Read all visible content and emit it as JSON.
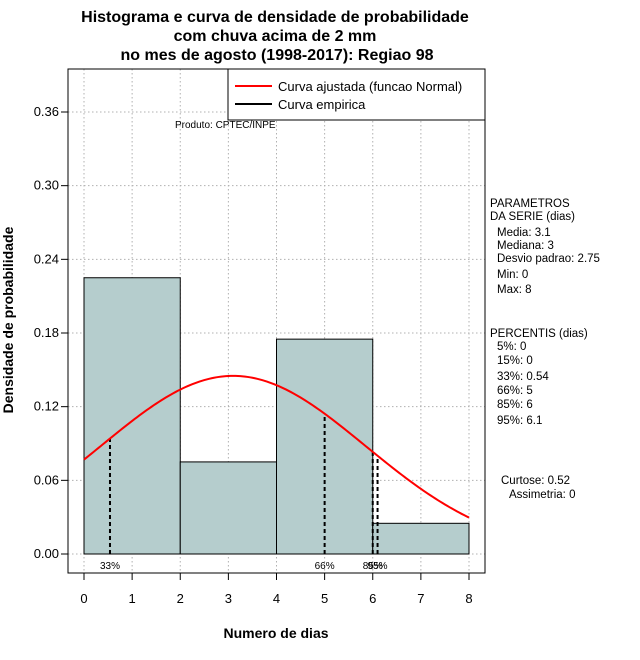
{
  "chart_data": {
    "type": "histogram",
    "title_lines": [
      "Histograma e curva de densidade de probabilidade",
      "com chuva acima de 2 mm",
      "no mes de agosto (1998-2017): Regiao 98"
    ],
    "xlabel": "Numero de dias",
    "ylabel": "Densidade de probabilidade",
    "xlim": [
      -0.3,
      8.3
    ],
    "ylim": [
      -0.015,
      0.39
    ],
    "x_ticks": [
      "0",
      "1",
      "2",
      "3",
      "4",
      "5",
      "6",
      "7",
      "8"
    ],
    "y_ticks": [
      "0.00",
      "0.06",
      "0.12",
      "0.18",
      "0.24",
      "0.30",
      "0.36"
    ],
    "bins": [
      {
        "x0": 0,
        "x1": 2,
        "density": 0.225
      },
      {
        "x0": 2,
        "x1": 4,
        "density": 0.075
      },
      {
        "x0": 4,
        "x1": 6,
        "density": 0.175
      },
      {
        "x0": 6,
        "x1": 8,
        "density": 0.025
      }
    ],
    "bar_color": "#b5cdcd",
    "fitted_curve": {
      "name": "Curva ajustada (funcao Normal)",
      "color": "#ff0000",
      "mean": 3.1,
      "sd": 2.75,
      "x_range": [
        0,
        8
      ]
    },
    "empirical_curve": {
      "name": "Curva empirica",
      "color": "#000000"
    },
    "percentile_markers": [
      {
        "x": 0.54,
        "label": "33%"
      },
      {
        "x": 5,
        "label": "66%"
      },
      {
        "x": 6,
        "label": "85%"
      },
      {
        "x": 6.1,
        "label": "95%"
      }
    ],
    "source_note": "Produto: CPTEC/INPE",
    "parametros": {
      "header1": "PARAMETROS",
      "header2": "DA SERIE (dias)",
      "lines": [
        "Media: 3.1",
        "Mediana: 3",
        "Desvio padrao: 2.75",
        "Min: 0",
        "Max: 8"
      ]
    },
    "percentis": {
      "header": "PERCENTIS (dias)",
      "lines": [
        "5%: 0",
        "15%: 0",
        "33%: 0.54",
        "66%: 5",
        "85%: 6",
        "95%: 6.1"
      ]
    },
    "shape": {
      "curtose": "Curtose: 0.52",
      "assimetria": "Assimetria: 0"
    }
  }
}
